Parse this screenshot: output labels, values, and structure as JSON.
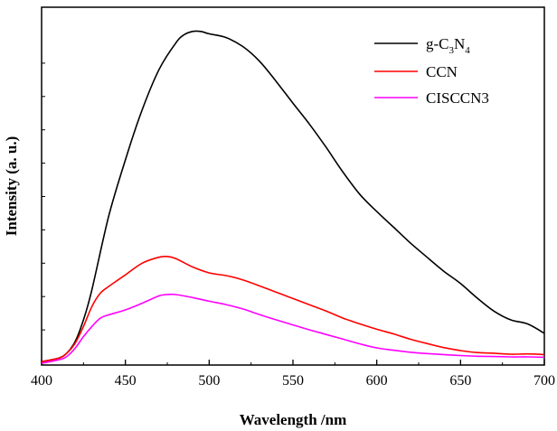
{
  "chart_data": {
    "type": "line",
    "title": "",
    "xlabel": "Wavelength /nm",
    "ylabel": "Intensity (a. u.)",
    "xlim": [
      400,
      700
    ],
    "ylim": [
      0,
      100
    ],
    "x_ticks": [
      400,
      450,
      500,
      550,
      600,
      650,
      700
    ],
    "y_tick_labels_shown": false,
    "legend_position": "top-right",
    "series": [
      {
        "name": "g-C3N4",
        "legend_parts": {
          "base": "g-C",
          "sub1": "3",
          "mid": "N",
          "sub2": "4"
        },
        "color": "#000000",
        "x": [
          400,
          410,
          415,
          420,
          425,
          430,
          440,
          450,
          460,
          470,
          480,
          485,
          490,
          495,
          500,
          510,
          520,
          530,
          540,
          550,
          560,
          570,
          580,
          590,
          600,
          610,
          620,
          630,
          640,
          650,
          660,
          670,
          680,
          690,
          700
        ],
        "y": [
          0.5,
          1.5,
          3,
          6.5,
          13,
          22,
          44,
          61,
          76,
          88,
          96,
          98.5,
          99.5,
          99.5,
          98.8,
          97.7,
          95,
          90.6,
          84.5,
          78,
          71.6,
          64.6,
          57.2,
          50.6,
          45.5,
          40.8,
          36.1,
          31.8,
          27.6,
          23.9,
          19.5,
          15.6,
          13,
          11.8,
          9
        ]
      },
      {
        "name": "CCN",
        "color": "#ff0000",
        "x": [
          400,
          410,
          415,
          420,
          425,
          430,
          435,
          440,
          450,
          460,
          470,
          475,
          480,
          490,
          500,
          510,
          520,
          530,
          540,
          550,
          560,
          570,
          580,
          590,
          600,
          610,
          620,
          630,
          640,
          650,
          660,
          670,
          680,
          690,
          700
        ],
        "y": [
          0.5,
          1.5,
          3,
          6,
          11,
          17,
          21,
          23,
          26.5,
          30,
          31.8,
          32,
          31.4,
          28.9,
          27.1,
          26.3,
          25,
          23.2,
          21.3,
          19.4,
          17.5,
          15.6,
          13.5,
          11.8,
          10.2,
          8.8,
          7.2,
          5.9,
          4.7,
          3.8,
          3.2,
          3,
          2.7,
          2.8,
          2.6
        ]
      },
      {
        "name": "CISCCN3",
        "color": "#ff00ff",
        "x": [
          400,
          410,
          415,
          420,
          425,
          430,
          435,
          440,
          450,
          460,
          470,
          475,
          480,
          490,
          500,
          510,
          520,
          530,
          540,
          550,
          560,
          570,
          580,
          590,
          600,
          610,
          620,
          630,
          640,
          650,
          660,
          670,
          680,
          690,
          700
        ],
        "y": [
          0,
          1,
          2,
          4.5,
          8,
          11,
          13.5,
          14.5,
          16,
          18,
          20.2,
          20.6,
          20.6,
          19.7,
          18.6,
          17.6,
          16.3,
          14.6,
          13,
          11.5,
          10,
          8.6,
          7.2,
          5.8,
          4.6,
          3.9,
          3.3,
          2.9,
          2.6,
          2.3,
          2.1,
          2,
          1.9,
          1.9,
          1.8
        ]
      }
    ]
  }
}
